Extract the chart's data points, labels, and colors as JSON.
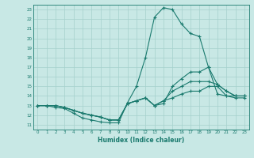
{
  "xlabel": "Humidex (Indice chaleur)",
  "xlim": [
    -0.5,
    23.5
  ],
  "ylim": [
    10.5,
    23.5
  ],
  "xticks": [
    0,
    1,
    2,
    3,
    4,
    5,
    6,
    7,
    8,
    9,
    10,
    11,
    12,
    13,
    14,
    15,
    16,
    17,
    18,
    19,
    20,
    21,
    22,
    23
  ],
  "yticks": [
    11,
    12,
    13,
    14,
    15,
    16,
    17,
    18,
    19,
    20,
    21,
    22,
    23
  ],
  "line_color": "#1a7a6e",
  "bg_color": "#c8e8e5",
  "grid_color": "#a5d0cc",
  "series": [
    {
      "x": [
        0,
        1,
        2,
        3,
        4,
        5,
        6,
        7,
        8,
        9,
        10,
        11,
        12,
        13,
        14,
        15,
        16,
        17,
        18,
        19,
        20,
        21,
        22,
        23
      ],
      "y": [
        13,
        13,
        12.8,
        12.7,
        12.2,
        11.7,
        11.5,
        11.3,
        11.2,
        11.2,
        13.3,
        15.0,
        18.0,
        22.2,
        23.2,
        23.0,
        21.5,
        20.5,
        20.2,
        17.0,
        14.2,
        14.0,
        14.0,
        14.0
      ]
    },
    {
      "x": [
        0,
        1,
        2,
        3,
        4,
        5,
        6,
        7,
        8,
        9,
        10,
        11,
        12,
        13,
        14,
        15,
        16,
        17,
        18,
        19,
        20,
        21,
        22,
        23
      ],
      "y": [
        13,
        13,
        13,
        12.8,
        12.5,
        12.2,
        12.0,
        11.8,
        11.5,
        11.5,
        13.2,
        13.5,
        13.8,
        13.0,
        13.2,
        15.0,
        15.8,
        16.5,
        16.5,
        17.0,
        15.2,
        14.5,
        14.0,
        14.0
      ]
    },
    {
      "x": [
        0,
        1,
        2,
        3,
        4,
        5,
        6,
        7,
        8,
        9,
        10,
        11,
        12,
        13,
        14,
        15,
        16,
        17,
        18,
        19,
        20,
        21,
        22,
        23
      ],
      "y": [
        13,
        13,
        13,
        12.8,
        12.5,
        12.2,
        12.0,
        11.8,
        11.5,
        11.5,
        13.2,
        13.5,
        13.8,
        13.0,
        13.5,
        14.5,
        15.0,
        15.5,
        15.5,
        15.5,
        15.2,
        14.5,
        14.0,
        14.0
      ]
    },
    {
      "x": [
        0,
        1,
        2,
        3,
        4,
        5,
        6,
        7,
        8,
        9,
        10,
        11,
        12,
        13,
        14,
        15,
        16,
        17,
        18,
        19,
        20,
        21,
        22,
        23
      ],
      "y": [
        13,
        13,
        13,
        12.8,
        12.5,
        12.2,
        12.0,
        11.8,
        11.5,
        11.5,
        13.2,
        13.5,
        13.8,
        13.0,
        13.5,
        13.8,
        14.2,
        14.5,
        14.5,
        15.0,
        15.0,
        14.0,
        13.8,
        13.8
      ]
    }
  ]
}
